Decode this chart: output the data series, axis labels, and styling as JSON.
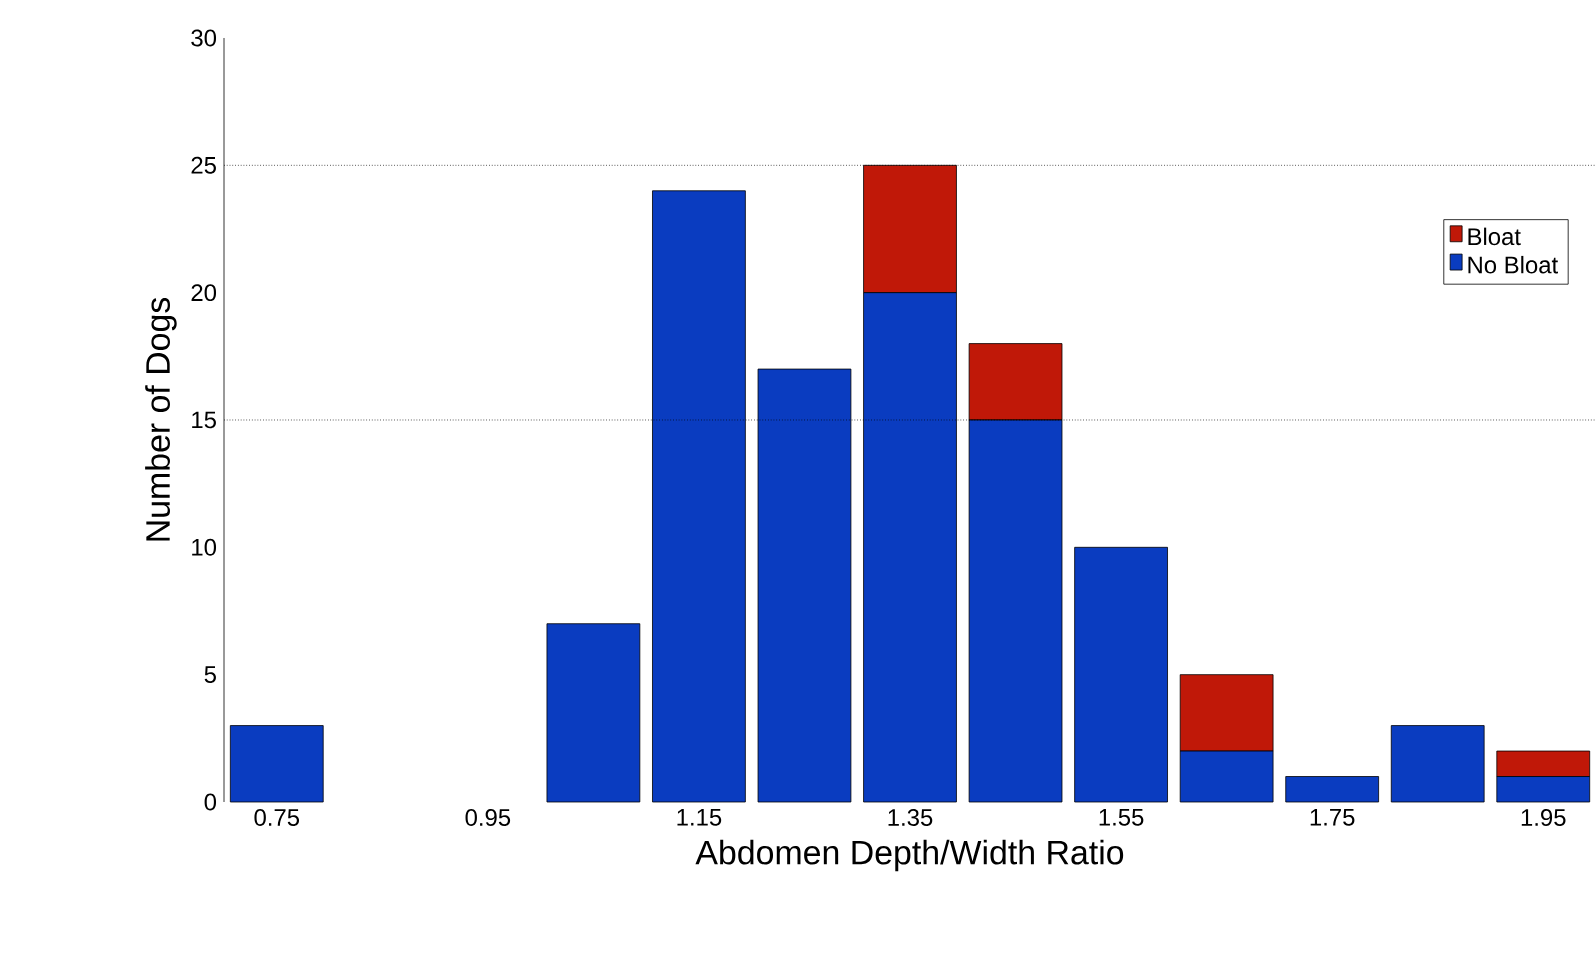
{
  "chart_data": {
    "type": "bar",
    "stacked": true,
    "xlabel": "Abdomen Depth/Width Ratio",
    "ylabel": "Number of Dogs",
    "categories": [
      "0.75",
      null,
      "0.95",
      null,
      "1.15",
      null,
      "1.35",
      null,
      "1.55",
      null,
      "1.75",
      null,
      "1.95"
    ],
    "series": [
      {
        "name": "No Bloat",
        "color": "#0a3cc0",
        "values": [
          3,
          0,
          0,
          7,
          24,
          17,
          20,
          15,
          10,
          2,
          1,
          3,
          1
        ]
      },
      {
        "name": "Bloat",
        "color": "#c01808",
        "values": [
          0,
          0,
          0,
          0,
          0,
          0,
          5,
          3,
          0,
          3,
          0,
          0,
          1
        ]
      }
    ],
    "ylim": [
      0,
      30
    ],
    "yticks": [
      0,
      5,
      10,
      15,
      20,
      25,
      30
    ],
    "ref_lines": [
      {
        "axis": "y",
        "value": 15,
        "line_style": "dotted"
      },
      {
        "axis": "y",
        "value": 25,
        "line_style": "dotted"
      }
    ],
    "legend": "right"
  }
}
